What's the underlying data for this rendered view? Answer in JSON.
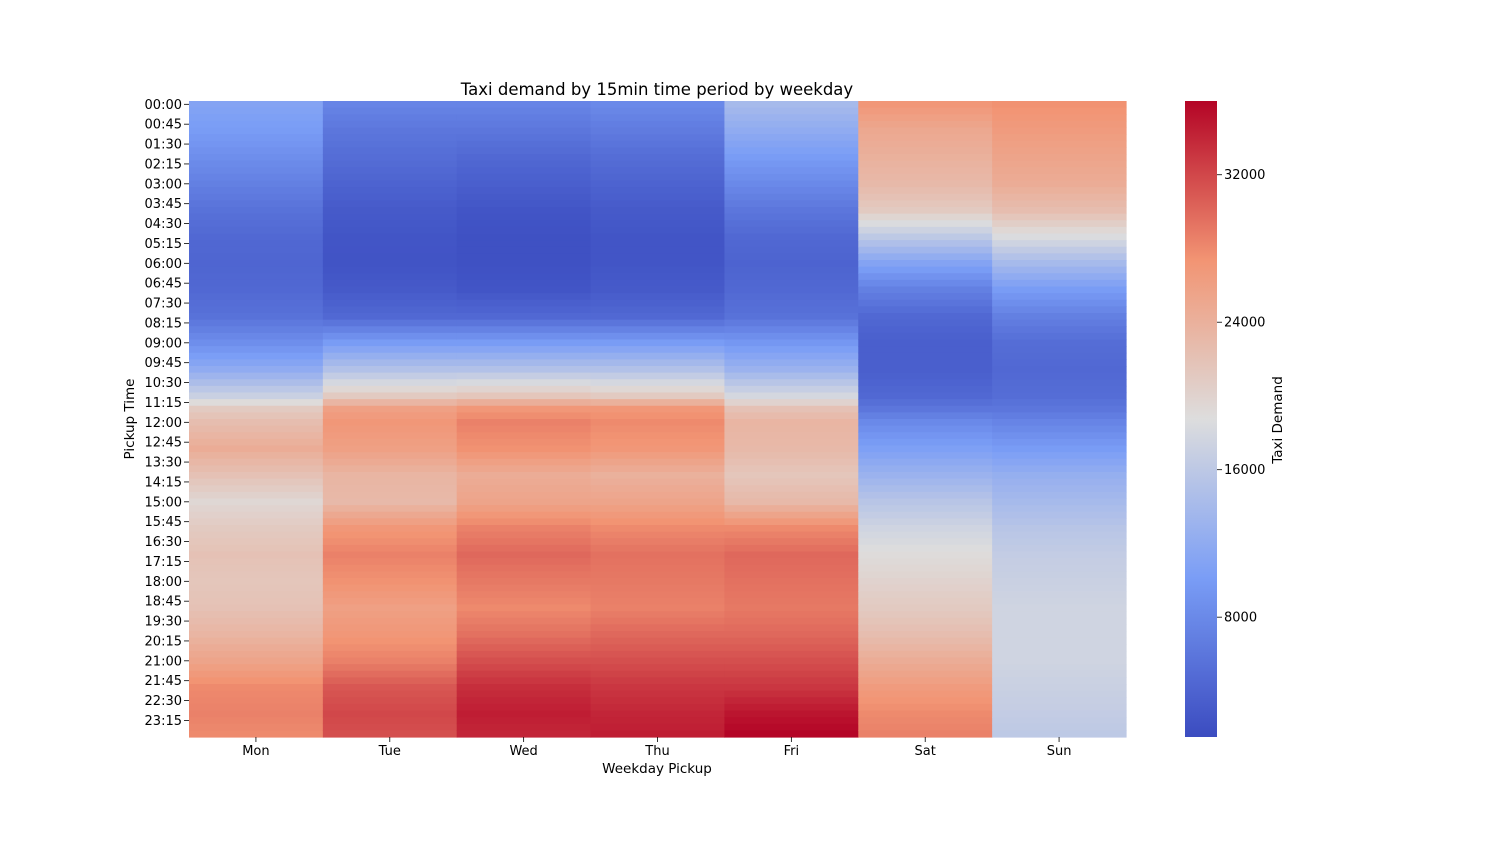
{
  "chart_data": {
    "type": "heatmap",
    "title": "Taxi demand by 15min time period by weekday",
    "xlabel": "Weekday Pickup",
    "ylabel": "Pickup Time",
    "colorbar_label": "Taxi Demand",
    "colormap": "coolwarm",
    "color_low": "#3b4cc0",
    "color_mid": "#dddddd",
    "color_high": "#b40426",
    "value_range": [
      1500,
      36000
    ],
    "colorbar_ticks": [
      8000,
      16000,
      24000,
      32000
    ],
    "colorbar_tick_labels": [
      "8000",
      "16000",
      "24000",
      "32000"
    ],
    "x_categories": [
      "Mon",
      "Tue",
      "Wed",
      "Thu",
      "Fri",
      "Sat",
      "Sun"
    ],
    "y_tick_labels": [
      "00:00",
      "00:45",
      "01:30",
      "02:15",
      "03:00",
      "03:45",
      "04:30",
      "05:15",
      "06:00",
      "06:45",
      "07:30",
      "08:15",
      "09:00",
      "09:45",
      "10:30",
      "11:15",
      "12:00",
      "12:45",
      "13:30",
      "14:15",
      "15:00",
      "15:45",
      "16:30",
      "17:15",
      "18:00",
      "18:45",
      "19:30",
      "20:15",
      "21:00",
      "21:45",
      "22:30",
      "23:15"
    ],
    "time_slot_count": 96,
    "y_tick_every": 3,
    "series": [
      {
        "name": "Mon",
        "values": [
          [
            0,
            11000
          ],
          [
            4,
            10000
          ],
          [
            8,
            8500
          ],
          [
            12,
            7000
          ],
          [
            16,
            5500
          ],
          [
            20,
            4500
          ],
          [
            24,
            4200
          ],
          [
            28,
            4500
          ],
          [
            32,
            5500
          ],
          [
            36,
            8500
          ],
          [
            40,
            12000
          ],
          [
            44,
            17000
          ],
          [
            46,
            21000
          ],
          [
            48,
            22500
          ],
          [
            52,
            24500
          ],
          [
            56,
            22000
          ],
          [
            60,
            19500
          ],
          [
            64,
            21000
          ],
          [
            68,
            22000
          ],
          [
            72,
            21500
          ],
          [
            76,
            22000
          ],
          [
            80,
            23500
          ],
          [
            84,
            25500
          ],
          [
            88,
            28000
          ],
          [
            92,
            28500
          ],
          [
            95,
            28000
          ]
        ]
      },
      {
        "name": "Tue",
        "values": [
          [
            0,
            7500
          ],
          [
            4,
            6000
          ],
          [
            8,
            5000
          ],
          [
            12,
            4000
          ],
          [
            16,
            3000
          ],
          [
            20,
            2500
          ],
          [
            24,
            2300
          ],
          [
            28,
            3000
          ],
          [
            32,
            4500
          ],
          [
            36,
            10000
          ],
          [
            40,
            15000
          ],
          [
            44,
            21000
          ],
          [
            46,
            26000
          ],
          [
            48,
            27000
          ],
          [
            52,
            26000
          ],
          [
            56,
            23500
          ],
          [
            60,
            23000
          ],
          [
            64,
            27000
          ],
          [
            68,
            28500
          ],
          [
            72,
            27500
          ],
          [
            76,
            26000
          ],
          [
            80,
            27000
          ],
          [
            84,
            28500
          ],
          [
            88,
            31000
          ],
          [
            92,
            32000
          ],
          [
            95,
            31500
          ]
        ]
      },
      {
        "name": "Wed",
        "values": [
          [
            0,
            7500
          ],
          [
            4,
            6000
          ],
          [
            8,
            4500
          ],
          [
            12,
            3500
          ],
          [
            16,
            2500
          ],
          [
            20,
            2000
          ],
          [
            24,
            2000
          ],
          [
            28,
            2500
          ],
          [
            32,
            4500
          ],
          [
            36,
            10000
          ],
          [
            40,
            15000
          ],
          [
            44,
            21500
          ],
          [
            46,
            27000
          ],
          [
            48,
            28500
          ],
          [
            52,
            27500
          ],
          [
            56,
            24500
          ],
          [
            60,
            25500
          ],
          [
            64,
            28500
          ],
          [
            68,
            30000
          ],
          [
            72,
            29000
          ],
          [
            76,
            28000
          ],
          [
            80,
            29500
          ],
          [
            84,
            31500
          ],
          [
            88,
            33500
          ],
          [
            92,
            34500
          ],
          [
            95,
            34000
          ]
        ]
      },
      {
        "name": "Thu",
        "values": [
          [
            0,
            8000
          ],
          [
            4,
            6500
          ],
          [
            8,
            5000
          ],
          [
            12,
            4000
          ],
          [
            16,
            3000
          ],
          [
            20,
            2500
          ],
          [
            24,
            2500
          ],
          [
            28,
            3000
          ],
          [
            32,
            4500
          ],
          [
            36,
            10000
          ],
          [
            40,
            15000
          ],
          [
            44,
            21000
          ],
          [
            46,
            27000
          ],
          [
            48,
            28000
          ],
          [
            52,
            27000
          ],
          [
            56,
            24000
          ],
          [
            60,
            25500
          ],
          [
            64,
            28000
          ],
          [
            68,
            29500
          ],
          [
            72,
            29000
          ],
          [
            76,
            28500
          ],
          [
            80,
            30000
          ],
          [
            84,
            31500
          ],
          [
            88,
            33000
          ],
          [
            92,
            34000
          ],
          [
            95,
            34500
          ]
        ]
      },
      {
        "name": "Fri",
        "values": [
          [
            0,
            14000
          ],
          [
            4,
            12000
          ],
          [
            8,
            10000
          ],
          [
            12,
            8000
          ],
          [
            16,
            6000
          ],
          [
            20,
            4500
          ],
          [
            24,
            4000
          ],
          [
            28,
            4500
          ],
          [
            32,
            5500
          ],
          [
            36,
            9500
          ],
          [
            40,
            13000
          ],
          [
            44,
            18000
          ],
          [
            46,
            22000
          ],
          [
            48,
            23500
          ],
          [
            52,
            23000
          ],
          [
            56,
            21500
          ],
          [
            60,
            23000
          ],
          [
            64,
            28000
          ],
          [
            68,
            30000
          ],
          [
            72,
            29500
          ],
          [
            76,
            29000
          ],
          [
            80,
            30000
          ],
          [
            84,
            31500
          ],
          [
            88,
            33000
          ],
          [
            92,
            35000
          ],
          [
            95,
            36000
          ]
        ]
      },
      {
        "name": "Sat",
        "values": [
          [
            0,
            27000
          ],
          [
            4,
            25000
          ],
          [
            8,
            24000
          ],
          [
            12,
            23000
          ],
          [
            16,
            21000
          ],
          [
            20,
            16000
          ],
          [
            24,
            11000
          ],
          [
            28,
            7000
          ],
          [
            32,
            4500
          ],
          [
            36,
            3500
          ],
          [
            40,
            3500
          ],
          [
            44,
            4500
          ],
          [
            46,
            6000
          ],
          [
            48,
            8000
          ],
          [
            52,
            10500
          ],
          [
            56,
            13000
          ],
          [
            60,
            15500
          ],
          [
            64,
            17500
          ],
          [
            68,
            19000
          ],
          [
            72,
            20000
          ],
          [
            76,
            21000
          ],
          [
            80,
            22500
          ],
          [
            84,
            24500
          ],
          [
            88,
            26500
          ],
          [
            92,
            28000
          ],
          [
            95,
            28500
          ]
        ]
      },
      {
        "name": "Sun",
        "values": [
          [
            0,
            27500
          ],
          [
            4,
            26500
          ],
          [
            8,
            25500
          ],
          [
            12,
            24500
          ],
          [
            16,
            22500
          ],
          [
            20,
            18500
          ],
          [
            24,
            14000
          ],
          [
            28,
            10000
          ],
          [
            32,
            7000
          ],
          [
            36,
            5000
          ],
          [
            40,
            4500
          ],
          [
            44,
            5000
          ],
          [
            46,
            6000
          ],
          [
            48,
            7500
          ],
          [
            52,
            10000
          ],
          [
            56,
            12500
          ],
          [
            60,
            14000
          ],
          [
            64,
            15500
          ],
          [
            68,
            16500
          ],
          [
            72,
            17000
          ],
          [
            76,
            17500
          ],
          [
            80,
            17500
          ],
          [
            84,
            17500
          ],
          [
            88,
            17000
          ],
          [
            92,
            16500
          ],
          [
            95,
            16000
          ]
        ]
      }
    ]
  }
}
